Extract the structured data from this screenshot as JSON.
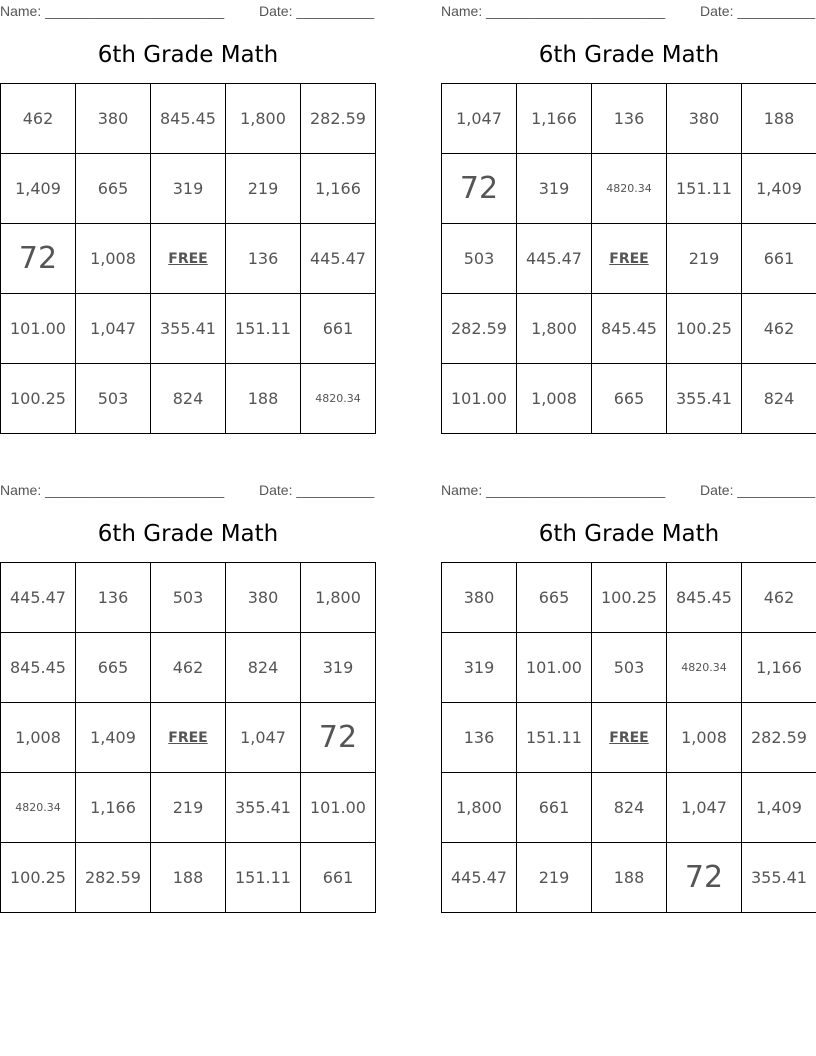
{
  "labels": {
    "name": "Name: _______________________",
    "date": "Date: __________",
    "title": "6th Grade Math",
    "free": "FREE"
  },
  "cards": [
    {
      "rows": [
        [
          "462",
          "380",
          "845.45",
          "1,800",
          "282.59"
        ],
        [
          "1,409",
          "665",
          "319",
          "219",
          "1,166"
        ],
        [
          "72",
          "1,008",
          "FREE",
          "136",
          "445.47"
        ],
        [
          "101.00",
          "1,047",
          "355.41",
          "151.11",
          "661"
        ],
        [
          "100.25",
          "503",
          "824",
          "188",
          "4820.34"
        ]
      ]
    },
    {
      "rows": [
        [
          "1,047",
          "1,166",
          "136",
          "380",
          "188"
        ],
        [
          "72",
          "319",
          "4820.34",
          "151.11",
          "1,409"
        ],
        [
          "503",
          "445.47",
          "FREE",
          "219",
          "661"
        ],
        [
          "282.59",
          "1,800",
          "845.45",
          "100.25",
          "462"
        ],
        [
          "101.00",
          "1,008",
          "665",
          "355.41",
          "824"
        ]
      ]
    },
    {
      "rows": [
        [
          "445.47",
          "136",
          "503",
          "380",
          "1,800"
        ],
        [
          "845.45",
          "665",
          "462",
          "824",
          "319"
        ],
        [
          "1,008",
          "1,409",
          "FREE",
          "1,047",
          "72"
        ],
        [
          "4820.34",
          "1,166",
          "219",
          "355.41",
          "101.00"
        ],
        [
          "100.25",
          "282.59",
          "188",
          "151.11",
          "661"
        ]
      ]
    },
    {
      "rows": [
        [
          "380",
          "665",
          "100.25",
          "845.45",
          "462"
        ],
        [
          "319",
          "101.00",
          "503",
          "4820.34",
          "1,166"
        ],
        [
          "136",
          "151.11",
          "FREE",
          "1,008",
          "282.59"
        ],
        [
          "1,800",
          "661",
          "824",
          "1,047",
          "1,409"
        ],
        [
          "445.47",
          "219",
          "188",
          "72",
          "355.41"
        ]
      ]
    }
  ]
}
